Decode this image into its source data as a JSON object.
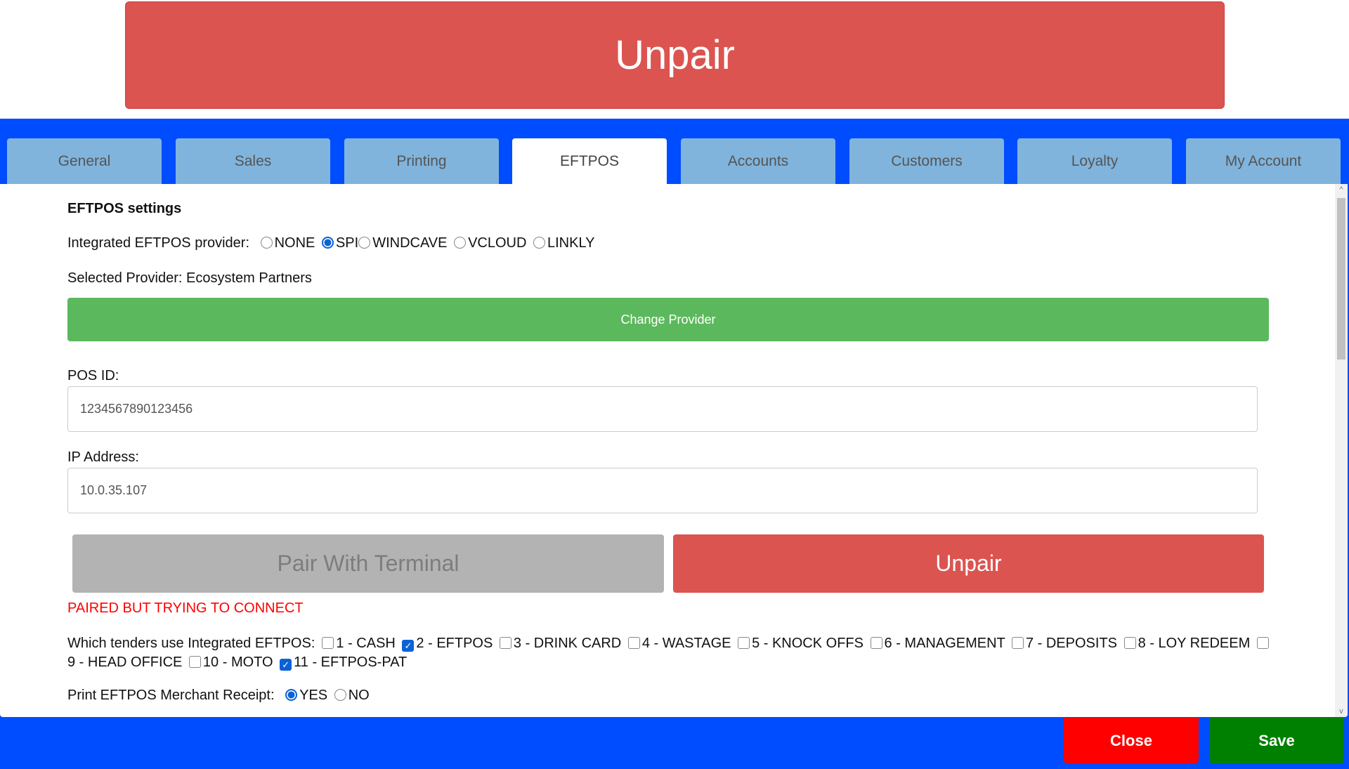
{
  "top_button": {
    "label": "Unpair"
  },
  "tabs": [
    {
      "label": "General"
    },
    {
      "label": "Sales"
    },
    {
      "label": "Printing"
    },
    {
      "label": "EFTPOS",
      "active": true
    },
    {
      "label": "Accounts"
    },
    {
      "label": "Customers"
    },
    {
      "label": "Loyalty"
    },
    {
      "label": "My Account"
    }
  ],
  "eftpos": {
    "heading": "EFTPOS settings",
    "provider_label": "Integrated EFTPOS provider:",
    "providers": [
      {
        "label": "NONE",
        "selected": false
      },
      {
        "label": "SPI",
        "selected": true
      },
      {
        "label": "WINDCAVE",
        "selected": false
      },
      {
        "label": "VCLOUD",
        "selected": false
      },
      {
        "label": "LINKLY",
        "selected": false
      }
    ],
    "selected_provider": "Selected Provider: Ecosystem Partners",
    "change_provider": "Change Provider",
    "pos_id_label": "POS ID:",
    "pos_id_value": "1234567890123456",
    "ip_label": "IP Address:",
    "ip_value": "10.0.35.107",
    "pair_button": "Pair With Terminal",
    "unpair_button": "Unpair",
    "status": "PAIRED BUT TRYING TO CONNECT",
    "tenders_label": "Which tenders use Integrated EFTPOS:",
    "tenders": [
      {
        "label": "1 - CASH",
        "checked": false
      },
      {
        "label": "2 - EFTPOS",
        "checked": true
      },
      {
        "label": "3 - DRINK CARD",
        "checked": false
      },
      {
        "label": "4 - WASTAGE",
        "checked": false
      },
      {
        "label": "5 - KNOCK OFFS",
        "checked": false
      },
      {
        "label": "6 - MANAGEMENT",
        "checked": false
      },
      {
        "label": "7 - DEPOSITS",
        "checked": false
      },
      {
        "label": "8 - LOY REDEEM",
        "checked": false
      },
      {
        "label": "9 - HEAD OFFICE",
        "checked": false
      },
      {
        "label": "10 - MOTO",
        "checked": false
      },
      {
        "label": "11 - EFTPOS-PAT",
        "checked": true
      }
    ],
    "receipt_label": "Print EFTPOS Merchant Receipt:",
    "receipt_options": [
      {
        "label": "YES",
        "selected": true
      },
      {
        "label": "NO",
        "selected": false
      }
    ]
  },
  "footer": {
    "close": "Close",
    "save": "Save"
  },
  "colors": {
    "band": "#004cff",
    "unpair": "#db5450",
    "green": "#5cb85c",
    "close": "#ff0000",
    "save": "#008000",
    "tab": "#80b4dc"
  }
}
